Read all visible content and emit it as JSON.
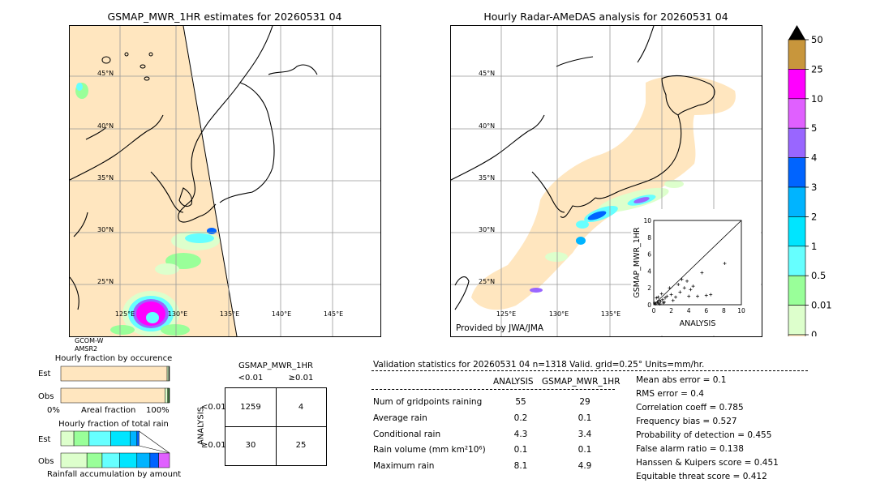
{
  "left_map": {
    "title": "GSMAP_MWR_1HR estimates for 20260531 04",
    "satellite_label_1": "GCOM-W",
    "satellite_label_2": "AMSR2",
    "lat_labels": [
      "45°N",
      "40°N",
      "35°N",
      "30°N",
      "25°N"
    ],
    "lon_labels": [
      "125°E",
      "130°E",
      "135°E",
      "140°E",
      "145°E"
    ]
  },
  "right_map": {
    "title": "Hourly Radar-AMeDAS analysis for 20260531 04",
    "credit": "Provided by JWA/JMA",
    "lat_labels": [
      "45°N",
      "40°N",
      "35°N",
      "30°N",
      "25°N"
    ],
    "lon_labels": [
      "125°E",
      "130°E",
      "135°E"
    ]
  },
  "colorbar": {
    "labels": [
      "50",
      "25",
      "10",
      "5",
      "4",
      "3",
      "2",
      "1",
      "0.5",
      "0.01",
      "0"
    ],
    "colors": [
      "#c8963c",
      "#ff00ff",
      "#e060ff",
      "#9966ff",
      "#0064ff",
      "#00b4ff",
      "#00e5ff",
      "#66ffff",
      "#99ff99",
      "#ddffcc",
      "#ffe6bf"
    ]
  },
  "occurrence": {
    "title": "Hourly fraction by occurence",
    "row_est": "Est",
    "row_obs": "Obs",
    "axis_left": "0%",
    "axis_mid": "Areal fraction",
    "axis_right": "100%"
  },
  "total_rain": {
    "title": "Hourly fraction of total rain",
    "row_est": "Est",
    "row_obs": "Obs",
    "footer": "Rainfall accumulation by amount"
  },
  "contingency": {
    "title": "GSMAP_MWR_1HR",
    "col_lt": "<0.01",
    "col_ge": "≥0.01",
    "side_label": "ANALYSIS",
    "row_lt": "<0.01",
    "row_ge": "≥0.01",
    "cells": [
      "1259",
      "4",
      "30",
      "25"
    ]
  },
  "validation": {
    "header": "Validation statistics for 20260531 04  n=1318 Valid. grid=0.25° Units=mm/hr.",
    "col_analysis": "ANALYSIS",
    "col_gsmap": "GSMAP_MWR_1HR",
    "rows": [
      {
        "label": "Num of gridpoints raining",
        "analysis": "55",
        "gsmap": "29"
      },
      {
        "label": "Average rain",
        "analysis": "0.2",
        "gsmap": "0.1"
      },
      {
        "label": "Conditional rain",
        "analysis": "4.3",
        "gsmap": "3.4"
      },
      {
        "label": "Rain volume (mm km²10⁶)",
        "analysis": "0.1",
        "gsmap": "0.1"
      },
      {
        "label": "Maximum rain",
        "analysis": "8.1",
        "gsmap": "4.9"
      }
    ],
    "scores": [
      "Mean abs error =    0.1",
      "RMS error =    0.4",
      "Correlation coeff =  0.785",
      "Frequency bias =  0.527",
      "Probability of detection =  0.455",
      "False alarm ratio =  0.138",
      "Hanssen & Kuipers score =  0.451",
      "Equitable threat score =  0.412"
    ]
  },
  "chart_data": [
    {
      "type": "scatter",
      "xlabel": "ANALYSIS",
      "ylabel": "GSMAP_MWR_1HR",
      "xlim": [
        0,
        10
      ],
      "ylim": [
        0,
        10
      ],
      "x_ticks": [
        "0",
        "2",
        "4",
        "6",
        "8",
        "10"
      ],
      "y_ticks": [
        "0",
        "2",
        "4",
        "6",
        "8",
        "10"
      ],
      "points": [
        [
          0.2,
          0.1
        ],
        [
          0.4,
          0.3
        ],
        [
          0.5,
          0.2
        ],
        [
          0.6,
          0.5
        ],
        [
          0.8,
          0.4
        ],
        [
          1.0,
          0.6
        ],
        [
          1.2,
          0.3
        ],
        [
          0.3,
          0.8
        ],
        [
          1.5,
          1.0
        ],
        [
          2.0,
          1.2
        ],
        [
          2.5,
          0.9
        ],
        [
          3.0,
          1.5
        ],
        [
          3.5,
          2.0
        ],
        [
          4.0,
          1.0
        ],
        [
          4.5,
          2.2
        ],
        [
          5.0,
          1.0
        ],
        [
          6.0,
          1.1
        ],
        [
          6.5,
          1.2
        ],
        [
          8.1,
          4.9
        ],
        [
          3.2,
          3.0
        ],
        [
          2.8,
          2.4
        ],
        [
          1.8,
          2.0
        ],
        [
          0.9,
          1.3
        ],
        [
          0.1,
          0.2
        ],
        [
          0.7,
          0.1
        ],
        [
          1.1,
          0.2
        ],
        [
          0.5,
          0.9
        ],
        [
          2.2,
          0.5
        ],
        [
          3.8,
          2.8
        ],
        [
          4.2,
          1.8
        ],
        [
          5.5,
          3.8
        ],
        [
          1.3,
          0.8
        ]
      ]
    },
    {
      "type": "bar",
      "title": "Hourly fraction by occurence",
      "categories": [
        "Est",
        "Obs"
      ],
      "xlabel": "Areal fraction",
      "series": [
        {
          "values": [
            0.978,
            0.958
          ]
        },
        {
          "values": [
            0.015,
            0.025
          ]
        },
        {
          "values": [
            0.004,
            0.008
          ]
        },
        {
          "values": [
            0.003,
            0.009
          ]
        }
      ]
    },
    {
      "type": "bar",
      "title": "Hourly fraction of total rain",
      "categories": [
        "Est",
        "Obs"
      ],
      "xlabel": "Rainfall accumulation by amount",
      "series": [
        {
          "values": [
            0.12,
            0.24
          ]
        },
        {
          "values": [
            0.14,
            0.14
          ]
        },
        {
          "values": [
            0.2,
            0.16
          ]
        },
        {
          "values": [
            0.18,
            0.16
          ]
        },
        {
          "values": [
            0.06,
            0.12
          ]
        },
        {
          "values": [
            0.02,
            0.08
          ]
        },
        {
          "values": [
            0.0,
            0.1
          ]
        }
      ]
    }
  ]
}
